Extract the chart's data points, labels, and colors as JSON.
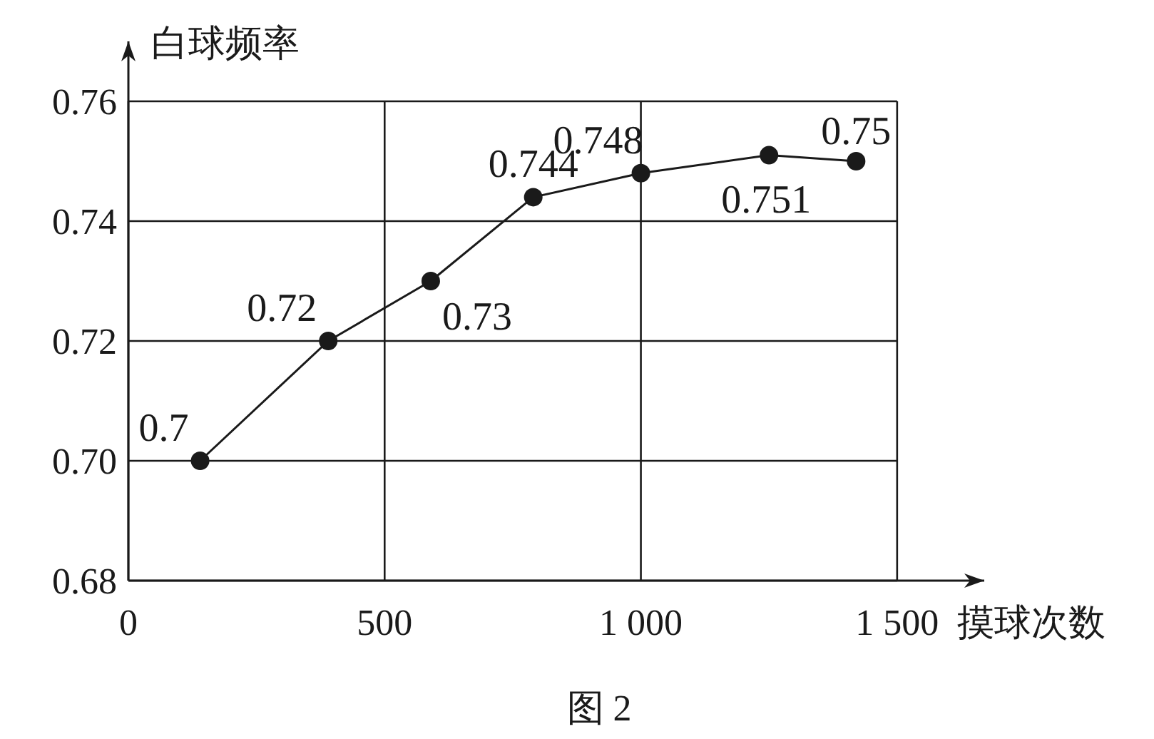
{
  "chart_data": {
    "type": "line",
    "xlabel": "摸球次数",
    "ylabel": "白球频率",
    "annotations": [
      "图 2"
    ],
    "x": [
      140,
      390,
      590,
      790,
      1000,
      1250,
      1420
    ],
    "series": [
      {
        "color": "#1a1a1a",
        "values": [
          0.7,
          0.72,
          0.73,
          0.744,
          0.748,
          0.751,
          0.75
        ]
      }
    ],
    "xlim": [
      0,
      1670
    ],
    "ylim": [
      0.68,
      0.77
    ],
    "xticks": [
      0,
      500,
      {
        "value": 1000,
        "label": "1 000"
      },
      {
        "value": 1500,
        "label": "1 500"
      }
    ],
    "yticks": [
      0.68,
      {
        "value": 0.7,
        "label": "0.70"
      },
      0.72,
      0.74,
      0.76
    ],
    "grid": true,
    "marker": "circle",
    "line_style": "solid",
    "data_labels": true
  }
}
